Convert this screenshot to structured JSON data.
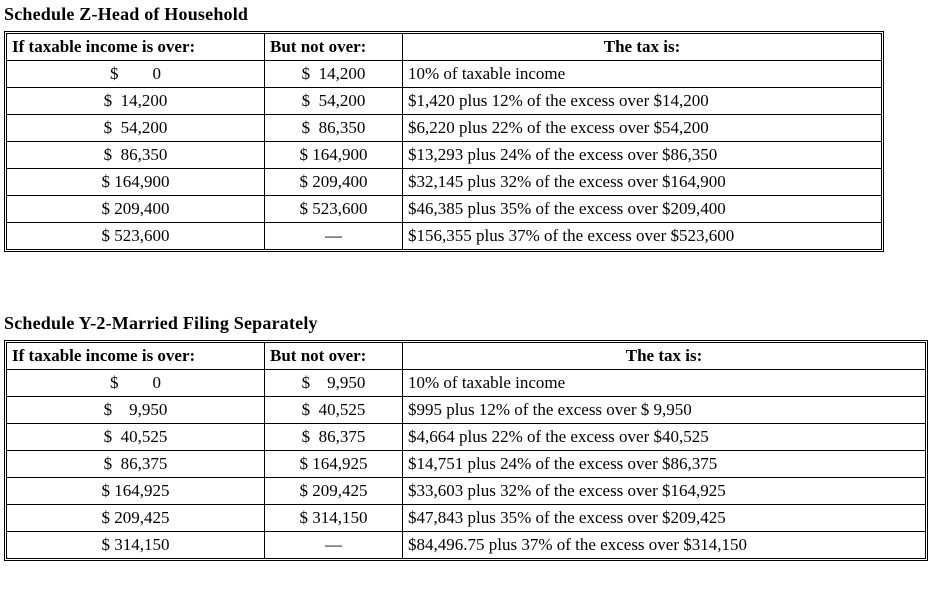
{
  "tables": [
    {
      "title": "Schedule Z-Head of Household",
      "headers": [
        "If taxable income is over:",
        "But not over:",
        "The tax is:"
      ],
      "rows": [
        {
          "over": "$        0",
          "not_over": "$  14,200",
          "tax": "10% of taxable income"
        },
        {
          "over": "$  14,200",
          "not_over": "$  54,200",
          "tax": "$1,420 plus 12% of the excess over $14,200"
        },
        {
          "over": "$  54,200",
          "not_over": "$  86,350",
          "tax": "$6,220 plus 22% of the excess over $54,200"
        },
        {
          "over": "$  86,350",
          "not_over": "$ 164,900",
          "tax": "$13,293 plus 24% of the excess over $86,350"
        },
        {
          "over": "$ 164,900",
          "not_over": "$ 209,400",
          "tax": "$32,145 plus 32% of the excess over $164,900"
        },
        {
          "over": "$ 209,400",
          "not_over": "$ 523,600",
          "tax": "$46,385 plus 35% of the excess over $209,400"
        },
        {
          "over": "$ 523,600",
          "not_over": "—",
          "tax": "$156,355 plus 37% of the excess over $523,600"
        }
      ]
    },
    {
      "title": "Schedule Y-2-Married Filing Separately",
      "headers": [
        "If taxable income is over:",
        "But not over:",
        "The tax is:"
      ],
      "rows": [
        {
          "over": "$        0",
          "not_over": "$    9,950",
          "tax": "10% of taxable income"
        },
        {
          "over": "$    9,950",
          "not_over": "$  40,525",
          "tax": "$995 plus 12% of the excess over $ 9,950"
        },
        {
          "over": "$  40,525",
          "not_over": "$  86,375",
          "tax": "$4,664 plus 22% of the excess over $40,525"
        },
        {
          "over": "$  86,375",
          "not_over": "$ 164,925",
          "tax": "$14,751 plus 24% of the excess over $86,375"
        },
        {
          "over": "$ 164,925",
          "not_over": "$ 209,425",
          "tax": "$33,603 plus 32% of the excess over $164,925"
        },
        {
          "over": "$ 209,425",
          "not_over": "$ 314,150",
          "tax": "$47,843 plus 35% of the excess over $209,425"
        },
        {
          "over": "$ 314,150",
          "not_over": "—",
          "tax": "$84,496.75 plus 37% of the excess over $314,150"
        }
      ]
    }
  ]
}
